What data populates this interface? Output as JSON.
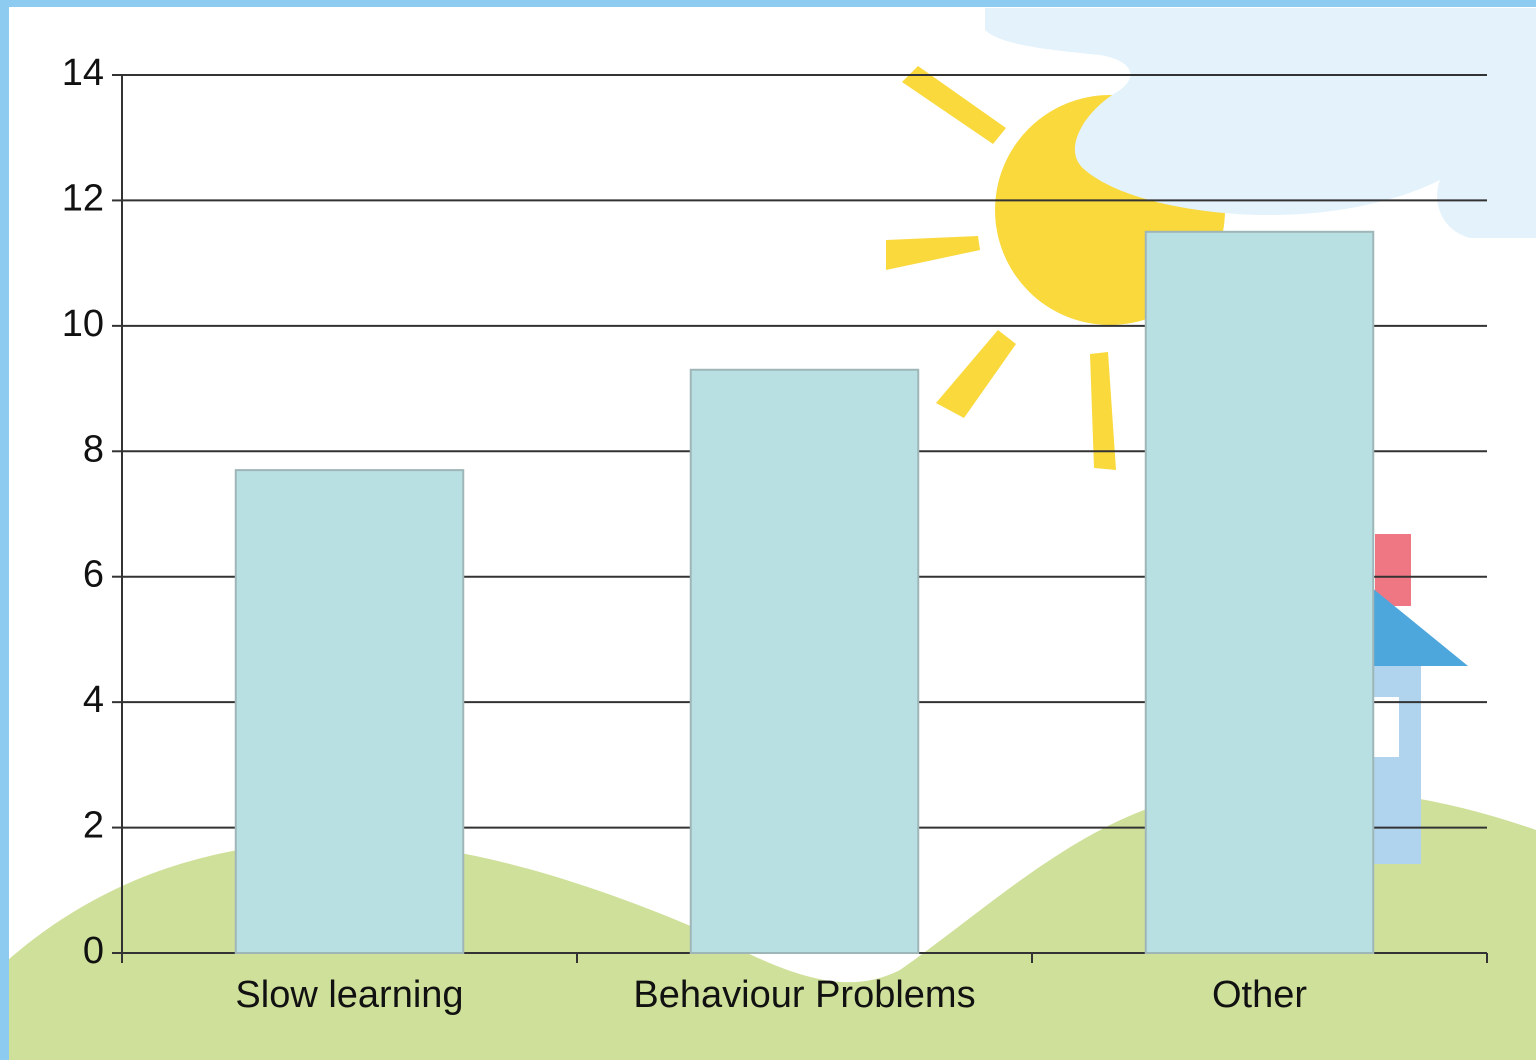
{
  "chart_data": {
    "type": "bar",
    "categories": [
      "Slow learning",
      "Behaviour Problems",
      "Other"
    ],
    "values": [
      7.7,
      9.3,
      11.5
    ],
    "color": "#b8dfe1",
    "ylim": [
      0,
      14
    ],
    "yticks": [
      0,
      2,
      4,
      6,
      8,
      10,
      12,
      14
    ],
    "grid": true
  }
}
